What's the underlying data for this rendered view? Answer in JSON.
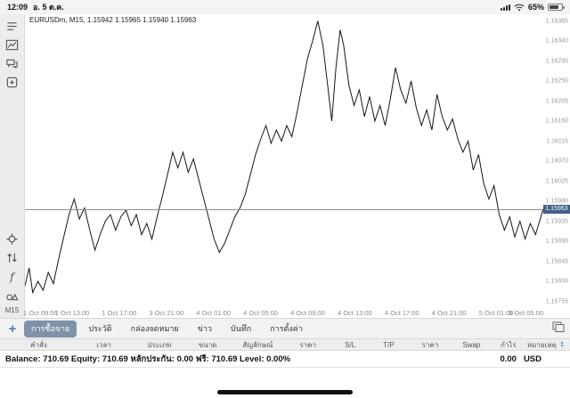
{
  "status": {
    "time": "12:09",
    "date": "อ. 5 ต.ค.",
    "battery_percent": "65%"
  },
  "sidebar": {
    "timeframe": "M15",
    "icons": [
      "quotes-icon",
      "chart-icon",
      "chat-icon",
      "new-order-icon",
      "crosshair-icon",
      "updown-arrows-icon",
      "indicators-icon",
      "objects-icon"
    ]
  },
  "chart_data": {
    "type": "line",
    "header": "EURUSDm, M15, 1.15942 1.15965 1.15940 1.15963",
    "symbol": "EURUSDm",
    "timeframe": "M15",
    "ohlc": {
      "open": "1.15942",
      "high": "1.15965",
      "low": "1.15940",
      "close": "1.15963"
    },
    "current_price": 1.15963,
    "line_color": "#161616",
    "badge_color": "#44618c",
    "ylim": [
      1.1574,
      1.164
    ],
    "y_ticks": [
      "1.16385",
      "1.16340",
      "1.16295",
      "1.16250",
      "1.16205",
      "1.16160",
      "1.16115",
      "1.16070",
      "1.16025",
      "1.15980",
      "1.15935",
      "1.15890",
      "1.15845",
      "1.15800",
      "1.15755"
    ],
    "x_ticks": [
      "1 Oct 09:00",
      "1 Oct 13:00",
      "1 Oct 17:00",
      "3 Oct 21:00",
      "4 Oct 01:00",
      "4 Oct 05:00",
      "4 Oct 09:00",
      "4 Oct 13:00",
      "4 Oct 17:00",
      "4 Oct 21:00",
      "5 Oct 01:00",
      "5 Oct 05:00"
    ],
    "points": [
      [
        0.0,
        1.1579
      ],
      [
        0.008,
        1.1583
      ],
      [
        0.015,
        1.15775
      ],
      [
        0.025,
        1.158
      ],
      [
        0.035,
        1.1578
      ],
      [
        0.045,
        1.1582
      ],
      [
        0.055,
        1.15795
      ],
      [
        0.065,
        1.1585
      ],
      [
        0.075,
        1.159
      ],
      [
        0.085,
        1.1595
      ],
      [
        0.095,
        1.15985
      ],
      [
        0.105,
        1.1594
      ],
      [
        0.115,
        1.15965
      ],
      [
        0.125,
        1.15915
      ],
      [
        0.135,
        1.1587
      ],
      [
        0.145,
        1.15905
      ],
      [
        0.155,
        1.15935
      ],
      [
        0.165,
        1.1595
      ],
      [
        0.175,
        1.15915
      ],
      [
        0.185,
        1.15945
      ],
      [
        0.195,
        1.1596
      ],
      [
        0.205,
        1.15925
      ],
      [
        0.215,
        1.1595
      ],
      [
        0.225,
        1.15905
      ],
      [
        0.235,
        1.1593
      ],
      [
        0.245,
        1.15895
      ],
      [
        0.255,
        1.15945
      ],
      [
        0.265,
        1.1599
      ],
      [
        0.275,
        1.1604
      ],
      [
        0.285,
        1.1609
      ],
      [
        0.295,
        1.16055
      ],
      [
        0.305,
        1.1609
      ],
      [
        0.315,
        1.16045
      ],
      [
        0.325,
        1.16075
      ],
      [
        0.335,
        1.1603
      ],
      [
        0.345,
        1.15985
      ],
      [
        0.355,
        1.1594
      ],
      [
        0.365,
        1.15895
      ],
      [
        0.375,
        1.15865
      ],
      [
        0.385,
        1.15885
      ],
      [
        0.395,
        1.15915
      ],
      [
        0.405,
        1.15945
      ],
      [
        0.415,
        1.15965
      ],
      [
        0.425,
        1.15995
      ],
      [
        0.435,
        1.1604
      ],
      [
        0.445,
        1.16085
      ],
      [
        0.455,
        1.1612
      ],
      [
        0.465,
        1.1615
      ],
      [
        0.475,
        1.1611
      ],
      [
        0.485,
        1.1614
      ],
      [
        0.495,
        1.16115
      ],
      [
        0.505,
        1.1615
      ],
      [
        0.515,
        1.16125
      ],
      [
        0.525,
        1.1618
      ],
      [
        0.535,
        1.1624
      ],
      [
        0.545,
        1.163
      ],
      [
        0.555,
        1.1634
      ],
      [
        0.565,
        1.16385
      ],
      [
        0.575,
        1.1633
      ],
      [
        0.585,
        1.1623
      ],
      [
        0.592,
        1.1616
      ],
      [
        0.6,
        1.1628
      ],
      [
        0.608,
        1.16365
      ],
      [
        0.615,
        1.1633
      ],
      [
        0.625,
        1.1624
      ],
      [
        0.635,
        1.16195
      ],
      [
        0.645,
        1.1623
      ],
      [
        0.655,
        1.1617
      ],
      [
        0.665,
        1.16215
      ],
      [
        0.675,
        1.1616
      ],
      [
        0.685,
        1.16195
      ],
      [
        0.695,
        1.1615
      ],
      [
        0.705,
        1.1621
      ],
      [
        0.715,
        1.1628
      ],
      [
        0.725,
        1.1623
      ],
      [
        0.735,
        1.162
      ],
      [
        0.745,
        1.1625
      ],
      [
        0.755,
        1.1619
      ],
      [
        0.765,
        1.1615
      ],
      [
        0.775,
        1.16185
      ],
      [
        0.785,
        1.1614
      ],
      [
        0.795,
        1.1622
      ],
      [
        0.805,
        1.1617
      ],
      [
        0.815,
        1.1614
      ],
      [
        0.825,
        1.16165
      ],
      [
        0.835,
        1.1612
      ],
      [
        0.845,
        1.1609
      ],
      [
        0.855,
        1.16115
      ],
      [
        0.865,
        1.1605
      ],
      [
        0.875,
        1.16085
      ],
      [
        0.885,
        1.1602
      ],
      [
        0.895,
        1.15985
      ],
      [
        0.905,
        1.16015
      ],
      [
        0.915,
        1.1595
      ],
      [
        0.925,
        1.15915
      ],
      [
        0.935,
        1.15945
      ],
      [
        0.945,
        1.159
      ],
      [
        0.955,
        1.15935
      ],
      [
        0.965,
        1.15895
      ],
      [
        0.975,
        1.1593
      ],
      [
        0.985,
        1.15905
      ],
      [
        1.0,
        1.15963
      ]
    ]
  },
  "toolbar": {
    "add_label": "+",
    "tabs": [
      {
        "label": "การซื้อขาย",
        "selected": true
      },
      {
        "label": "ประวัติ",
        "selected": false
      },
      {
        "label": "กล่องจดหมาย",
        "selected": false
      },
      {
        "label": "ข่าว",
        "selected": false
      },
      {
        "label": "บันทึก",
        "selected": false
      },
      {
        "label": "การตั้งค่า",
        "selected": false
      }
    ],
    "selected_color": "#7e93a9"
  },
  "table": {
    "columns": [
      "คำสั่ง",
      "เวลา",
      "ประเภท",
      "ขนาด",
      "สัญลักษณ์",
      "ราคา",
      "S/L",
      "T/P",
      "ราคา",
      "Swap",
      "กำไร",
      "หมายเหตุ"
    ]
  },
  "account": {
    "summary": "Balance: 710.69  Equity: 710.69  หลักประกัน: 0.00  ฟรี: 710.69  Level: 0.00%",
    "profit": "0.00",
    "currency": "USD"
  }
}
